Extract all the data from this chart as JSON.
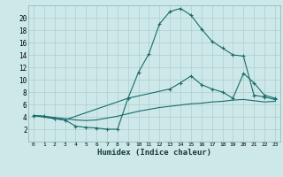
{
  "xlabel": "Humidex (Indice chaleur)",
  "background_color": "#cde8e8",
  "grid_color": "#b0cccc",
  "line_color": "#1a6b6b",
  "xlim": [
    -0.5,
    23.5
  ],
  "ylim": [
    0,
    22
  ],
  "xtick_labels": [
    "0",
    "1",
    "2",
    "3",
    "4",
    "5",
    "6",
    "7",
    "8",
    "9",
    "10",
    "11",
    "12",
    "13",
    "14",
    "15",
    "16",
    "17",
    "18",
    "19",
    "20",
    "21",
    "22",
    "23"
  ],
  "xtick_vals": [
    0,
    1,
    2,
    3,
    4,
    5,
    6,
    7,
    8,
    9,
    10,
    11,
    12,
    13,
    14,
    15,
    16,
    17,
    18,
    19,
    20,
    21,
    22,
    23
  ],
  "yticks": [
    2,
    4,
    6,
    8,
    10,
    12,
    14,
    16,
    18,
    20
  ],
  "line1_x": [
    0,
    1,
    2,
    3,
    9,
    10,
    11,
    12,
    13,
    14,
    15,
    16,
    17,
    18,
    19,
    20,
    21,
    22,
    23
  ],
  "line1_y": [
    4.2,
    4.1,
    3.7,
    3.5,
    7.0,
    11.2,
    14.2,
    19.0,
    21.0,
    21.5,
    20.4,
    18.2,
    16.2,
    15.1,
    14.0,
    13.8,
    7.5,
    7.2,
    6.8
  ],
  "line2_x": [
    0,
    2,
    3,
    4,
    5,
    6,
    7,
    8,
    9,
    13,
    14,
    15,
    16,
    17,
    18,
    19,
    20,
    21,
    22,
    23
  ],
  "line2_y": [
    4.2,
    3.7,
    3.5,
    2.5,
    2.3,
    2.2,
    2.0,
    2.0,
    7.0,
    8.5,
    9.5,
    10.6,
    9.2,
    8.5,
    8.0,
    7.0,
    11.0,
    9.5,
    7.5,
    7.0
  ],
  "line3_x": [
    0,
    1,
    2,
    3,
    4,
    5,
    6,
    7,
    8,
    9,
    10,
    11,
    12,
    13,
    14,
    15,
    16,
    17,
    18,
    19,
    20,
    21,
    22,
    23
  ],
  "line3_y": [
    4.2,
    4.1,
    3.9,
    3.7,
    3.5,
    3.4,
    3.5,
    3.8,
    4.1,
    4.5,
    4.9,
    5.2,
    5.5,
    5.7,
    5.9,
    6.1,
    6.2,
    6.4,
    6.5,
    6.7,
    6.8,
    6.6,
    6.4,
    6.5
  ]
}
